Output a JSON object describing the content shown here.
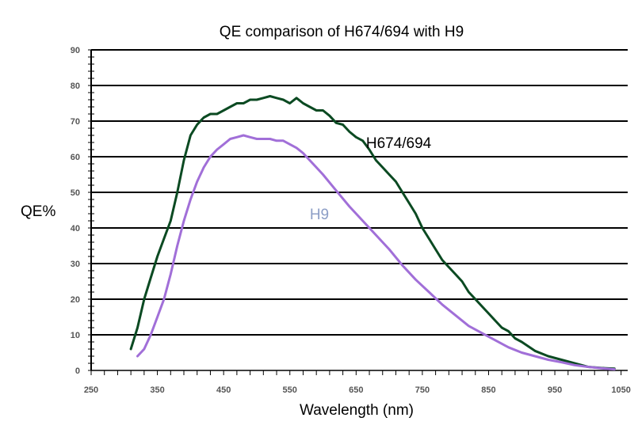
{
  "chart_data": {
    "type": "line",
    "title": "QE comparison of H674/694 with H9",
    "xlabel": "Wavelength (nm)",
    "ylabel": "QE%",
    "xlim": [
      250,
      1060
    ],
    "ylim": [
      0,
      90
    ],
    "xticks": [
      250,
      350,
      450,
      550,
      650,
      750,
      850,
      950,
      1050
    ],
    "yticks": [
      0,
      10,
      20,
      30,
      40,
      50,
      60,
      70,
      80,
      90
    ],
    "grid": "horizontal",
    "series": [
      {
        "name": "H674/694",
        "color": "#0b4a22",
        "label_color": "#000000",
        "x": [
          310,
          320,
          330,
          340,
          350,
          360,
          370,
          380,
          390,
          400,
          410,
          420,
          430,
          440,
          450,
          460,
          470,
          480,
          490,
          500,
          510,
          520,
          530,
          540,
          550,
          560,
          570,
          580,
          590,
          600,
          610,
          620,
          630,
          640,
          650,
          660,
          670,
          680,
          690,
          700,
          710,
          720,
          730,
          740,
          750,
          760,
          770,
          780,
          790,
          800,
          810,
          820,
          830,
          840,
          850,
          860,
          870,
          880,
          890,
          900,
          920,
          940,
          960,
          980,
          1000,
          1020,
          1040
        ],
        "values": [
          6,
          12,
          20,
          26,
          32,
          37,
          42,
          50,
          59,
          66,
          69,
          71,
          72,
          72,
          73,
          74,
          75,
          75,
          76,
          76,
          76.5,
          77,
          76.5,
          76,
          75,
          76.5,
          75,
          74,
          73,
          73,
          71.5,
          69.5,
          69,
          67,
          65.5,
          64.5,
          62,
          59,
          57,
          55,
          53,
          50,
          47,
          44,
          40,
          37,
          34,
          31,
          29,
          27,
          25,
          22,
          20,
          18,
          16,
          14,
          12,
          11,
          9,
          8,
          5.5,
          4,
          3,
          2,
          1,
          0.7,
          0.5
        ]
      },
      {
        "name": "H9",
        "color": "#a16fd8",
        "label_color": "#8c9ec6",
        "x": [
          320,
          330,
          340,
          350,
          360,
          370,
          380,
          390,
          400,
          410,
          420,
          430,
          440,
          450,
          460,
          470,
          480,
          490,
          500,
          510,
          520,
          530,
          540,
          550,
          560,
          570,
          580,
          590,
          600,
          620,
          640,
          660,
          680,
          700,
          720,
          740,
          760,
          780,
          800,
          820,
          840,
          860,
          880,
          900,
          920,
          940,
          960,
          980,
          1000,
          1020,
          1040
        ],
        "values": [
          4,
          6,
          10,
          15,
          20,
          27,
          35,
          42,
          48,
          53,
          57,
          60,
          62,
          63.5,
          65,
          65.5,
          66,
          65.5,
          65,
          65,
          65,
          64.5,
          64.5,
          63.5,
          62.5,
          61,
          59,
          57,
          55,
          50.5,
          46,
          42,
          38,
          34,
          29.5,
          25.5,
          22,
          18.5,
          15.5,
          12.5,
          10.5,
          8.5,
          6.5,
          5,
          4,
          3,
          2.3,
          1.5,
          1,
          0.6,
          0.3
        ]
      }
    ],
    "series_labels": [
      {
        "text": "H674/694",
        "x": 665,
        "y": 64
      },
      {
        "text": "H9",
        "x": 580,
        "y": 44
      }
    ]
  }
}
